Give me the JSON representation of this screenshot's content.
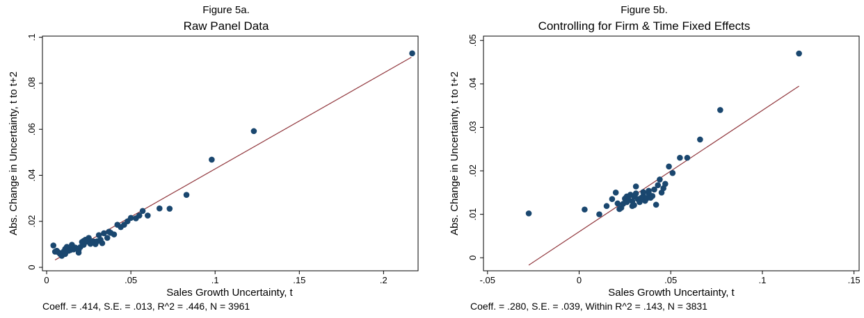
{
  "chart_data": [
    {
      "type": "scatter",
      "figure_label": "Figure 5a.",
      "title": "Raw Panel Data",
      "xlabel": "Sales Growth Uncertainty, t",
      "ylabel": "Abs. Change in Uncertainty, t to t+2",
      "note": "Coeff. = .414, S.E. = .013, R^2 = .446, N = 3961",
      "xlim": [
        -0.0025,
        0.2205
      ],
      "ylim": [
        -0.0015,
        0.1005
      ],
      "x_ticks": [
        0,
        0.05,
        0.1,
        0.15,
        0.2
      ],
      "x_tick_labels": [
        "0",
        ".05",
        ".1",
        ".15",
        ".2"
      ],
      "y_ticks": [
        0,
        0.02,
        0.04,
        0.06,
        0.08,
        0.1
      ],
      "y_tick_labels": [
        "0",
        ".02",
        ".04",
        ".06",
        ".08",
        ".1"
      ],
      "grid": false,
      "legend": "none",
      "point_color": "#1a476f",
      "fit_color": "#90353b",
      "fit_line": {
        "x": [
          0.005,
          0.2165
        ],
        "y": [
          0.0032,
          0.0913
        ]
      },
      "points": [
        [
          0.004,
          0.0095
        ],
        [
          0.005,
          0.0068
        ],
        [
          0.006,
          0.0072
        ],
        [
          0.007,
          0.0065
        ],
        [
          0.008,
          0.0058
        ],
        [
          0.009,
          0.005
        ],
        [
          0.01,
          0.0068
        ],
        [
          0.011,
          0.008
        ],
        [
          0.011,
          0.0058
        ],
        [
          0.012,
          0.0089
        ],
        [
          0.013,
          0.0072
        ],
        [
          0.014,
          0.0075
        ],
        [
          0.015,
          0.0098
        ],
        [
          0.015,
          0.0081
        ],
        [
          0.016,
          0.0078
        ],
        [
          0.017,
          0.0086
        ],
        [
          0.018,
          0.008
        ],
        [
          0.019,
          0.0075
        ],
        [
          0.019,
          0.0064
        ],
        [
          0.02,
          0.0088
        ],
        [
          0.021,
          0.011
        ],
        [
          0.022,
          0.0098
        ],
        [
          0.022,
          0.0115
        ],
        [
          0.023,
          0.012
        ],
        [
          0.024,
          0.0112
        ],
        [
          0.025,
          0.0128
        ],
        [
          0.026,
          0.0102
        ],
        [
          0.027,
          0.0113
        ],
        [
          0.028,
          0.0112
        ],
        [
          0.029,
          0.0101
        ],
        [
          0.03,
          0.0113
        ],
        [
          0.031,
          0.014
        ],
        [
          0.032,
          0.012
        ],
        [
          0.033,
          0.0105
        ],
        [
          0.034,
          0.0148
        ],
        [
          0.036,
          0.0128
        ],
        [
          0.037,
          0.0155
        ],
        [
          0.038,
          0.015
        ],
        [
          0.04,
          0.0143
        ],
        [
          0.042,
          0.0185
        ],
        [
          0.044,
          0.0175
        ],
        [
          0.046,
          0.0185
        ],
        [
          0.048,
          0.02
        ],
        [
          0.05,
          0.0215
        ],
        [
          0.053,
          0.0213
        ],
        [
          0.055,
          0.0225
        ],
        [
          0.057,
          0.0245
        ],
        [
          0.06,
          0.0225
        ],
        [
          0.067,
          0.0256
        ],
        [
          0.073,
          0.0255
        ],
        [
          0.083,
          0.0315
        ],
        [
          0.098,
          0.0468
        ],
        [
          0.123,
          0.0592
        ],
        [
          0.217,
          0.093
        ]
      ]
    },
    {
      "type": "scatter",
      "figure_label": "Figure 5b.",
      "title": "Controlling for Firm & Time Fixed Effects",
      "xlabel": "Sales Growth Uncertainty, t",
      "ylabel": "Abs. Change in Uncertainty, t to t+2",
      "note": "Coeff. = .280, S.E. = .039, Within R^2 = .143, N = 3831",
      "xlim": [
        -0.0522,
        0.1528
      ],
      "ylim": [
        -0.003,
        0.051
      ],
      "x_ticks": [
        -0.05,
        0,
        0.05,
        0.1,
        0.15
      ],
      "x_tick_labels": [
        "-.05",
        "0",
        ".05",
        ".1",
        ".15"
      ],
      "y_ticks": [
        0,
        0.01,
        0.02,
        0.03,
        0.04,
        0.05
      ],
      "y_tick_labels": [
        "0",
        ".01",
        ".02",
        ".03",
        ".04",
        ".05"
      ],
      "grid": false,
      "legend": "none",
      "point_color": "#1a476f",
      "fit_color": "#90353b",
      "fit_line": {
        "x": [
          -0.0275,
          0.12
        ],
        "y": [
          -0.0017,
          0.0395
        ]
      },
      "points": [
        [
          -0.0275,
          0.0102
        ],
        [
          0.003,
          0.0111
        ],
        [
          0.011,
          0.01
        ],
        [
          0.015,
          0.0119
        ],
        [
          0.018,
          0.0135
        ],
        [
          0.02,
          0.015
        ],
        [
          0.021,
          0.0125
        ],
        [
          0.022,
          0.0112
        ],
        [
          0.023,
          0.0115
        ],
        [
          0.024,
          0.0124
        ],
        [
          0.025,
          0.0136
        ],
        [
          0.026,
          0.0141
        ],
        [
          0.026,
          0.0128
        ],
        [
          0.027,
          0.0133
        ],
        [
          0.028,
          0.0145
        ],
        [
          0.029,
          0.013
        ],
        [
          0.029,
          0.0119
        ],
        [
          0.03,
          0.0121
        ],
        [
          0.03,
          0.0141
        ],
        [
          0.031,
          0.0148
        ],
        [
          0.031,
          0.0164
        ],
        [
          0.032,
          0.0135
        ],
        [
          0.033,
          0.0128
        ],
        [
          0.034,
          0.0138
        ],
        [
          0.035,
          0.0142
        ],
        [
          0.035,
          0.0151
        ],
        [
          0.036,
          0.0131
        ],
        [
          0.037,
          0.0137
        ],
        [
          0.038,
          0.0148
        ],
        [
          0.038,
          0.0154
        ],
        [
          0.039,
          0.0138
        ],
        [
          0.04,
          0.0142
        ],
        [
          0.041,
          0.0157
        ],
        [
          0.042,
          0.0122
        ],
        [
          0.043,
          0.0167
        ],
        [
          0.044,
          0.018
        ],
        [
          0.045,
          0.015
        ],
        [
          0.046,
          0.016
        ],
        [
          0.047,
          0.017
        ],
        [
          0.049,
          0.021
        ],
        [
          0.051,
          0.0195
        ],
        [
          0.055,
          0.023
        ],
        [
          0.059,
          0.023
        ],
        [
          0.066,
          0.0272
        ],
        [
          0.077,
          0.034
        ],
        [
          0.12,
          0.047
        ]
      ]
    }
  ]
}
